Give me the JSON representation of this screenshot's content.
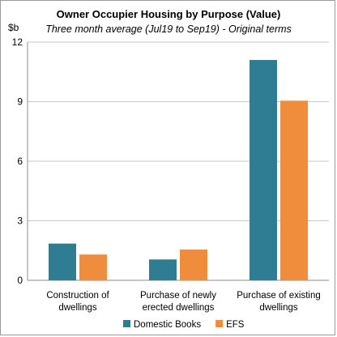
{
  "chart_data": {
    "type": "bar",
    "title": "Owner Occupier Housing by Purpose (Value)",
    "subtitle": "Three month average (Jul19 to Sep19) - Original terms",
    "ylabel": "$b",
    "ylim": [
      0,
      12
    ],
    "yticks": [
      0,
      3,
      6,
      9,
      12
    ],
    "grid": true,
    "legend_position": "bottom",
    "categories": [
      [
        "Construction of",
        "dwellings"
      ],
      [
        "Purchase of newly",
        "erected dwellings"
      ],
      [
        "Purchase of existing",
        "dwellings"
      ]
    ],
    "series": [
      {
        "name": "Domestic Books",
        "color": "#2e7d92",
        "values": [
          1.85,
          1.05,
          11.1
        ]
      },
      {
        "name": "EFS",
        "color": "#f08d3c",
        "values": [
          1.3,
          1.55,
          9.05
        ]
      }
    ]
  }
}
